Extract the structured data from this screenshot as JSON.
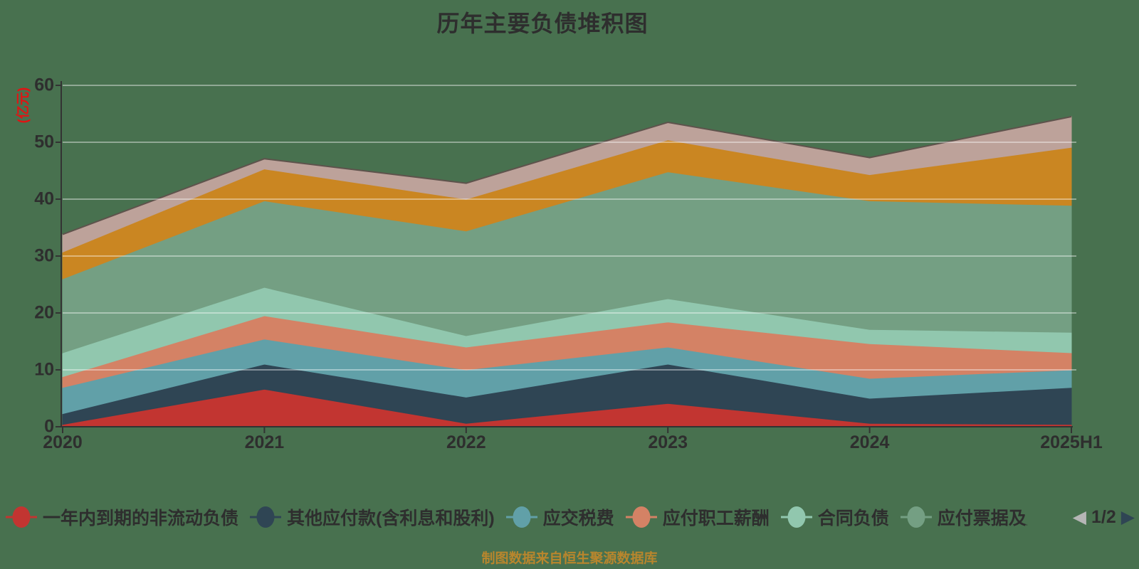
{
  "title": {
    "text": "历年主要负债堆积图"
  },
  "footer": {
    "text": "制图数据来自恒生聚源数据库"
  },
  "y_axis": {
    "unit_label": "(亿元)",
    "ticks": [
      0,
      10,
      20,
      30,
      40,
      50,
      60
    ]
  },
  "x_axis": {
    "categories": [
      "2020",
      "2021",
      "2022",
      "2023",
      "2024",
      "2025H1"
    ]
  },
  "legend": {
    "items": [
      {
        "label": "一年内到期的非流动负债",
        "color": "#c23531",
        "truncated": false
      },
      {
        "label": "其他应付款(含利息和股利)",
        "color": "#2f4554",
        "truncated": false
      },
      {
        "label": "应交税费",
        "color": "#61a0a8",
        "truncated": false
      },
      {
        "label": "应付职工薪酬",
        "color": "#d48265",
        "truncated": false
      },
      {
        "label": "合同负债",
        "color": "#91c7ae",
        "truncated": false
      },
      {
        "label": "应付票据及应",
        "color": "#749f83",
        "truncated": true
      }
    ],
    "pager": {
      "current_page_label": "1/2",
      "prev_icon": "◀",
      "next_icon": "▶"
    }
  },
  "colors": {
    "background": "#48714f",
    "text": "#2e2e2e",
    "axis": "#333333",
    "gridline": "rgba(255,255,255,0.4)",
    "unit_label": "#e01414",
    "footer_text": "#b8862d",
    "stack_top_line": "#5e534c",
    "pager_prev": "#b6b6b6",
    "pager_next": "#2f4554"
  },
  "chart_data": {
    "type": "area",
    "stacked": true,
    "title": "历年主要负债堆积图",
    "x": [
      "2020",
      "2021",
      "2022",
      "2023",
      "2024",
      "2025H1"
    ],
    "ylabel": "(亿元)",
    "ylim": [
      0,
      60
    ],
    "ytick_step": 10,
    "grid": true,
    "legend_position": "bottom",
    "legend_pages": "1/2",
    "series": [
      {
        "name": "一年内到期的非流动负债",
        "color": "#c23531",
        "values": [
          0.4,
          6.6,
          0.6,
          4.1,
          0.6,
          0.4
        ]
      },
      {
        "name": "其他应付款(含利息和股利)",
        "color": "#2f4554",
        "values": [
          1.9,
          4.4,
          4.6,
          6.9,
          4.4,
          6.5
        ]
      },
      {
        "name": "应交税费",
        "color": "#61a0a8",
        "values": [
          4.6,
          4.4,
          4.8,
          3.0,
          3.5,
          3.1
        ]
      },
      {
        "name": "应付职工薪酬",
        "color": "#d48265",
        "values": [
          1.9,
          4.1,
          4.0,
          4.4,
          6.1,
          3.0
        ]
      },
      {
        "name": "合同负债",
        "color": "#91c7ae",
        "values": [
          4.2,
          5.0,
          2.0,
          4.1,
          2.5,
          3.6
        ]
      },
      {
        "name": "应付票据及应",
        "color": "#749f83",
        "values": [
          13.0,
          15.2,
          18.4,
          22.3,
          22.6,
          22.3
        ]
      },
      {
        "name": "",
        "legend_page_2": true,
        "color": "#ca8622",
        "values": [
          4.7,
          5.6,
          5.6,
          5.6,
          4.6,
          10.2
        ]
      },
      {
        "name": "",
        "legend_page_2": true,
        "color": "#bda29a",
        "values": [
          3.1,
          1.8,
          2.8,
          3.1,
          3.0,
          5.4
        ]
      }
    ],
    "stack_totals": [
      33.8,
      47.1,
      42.8,
      53.5,
      47.3,
      54.5
    ]
  }
}
